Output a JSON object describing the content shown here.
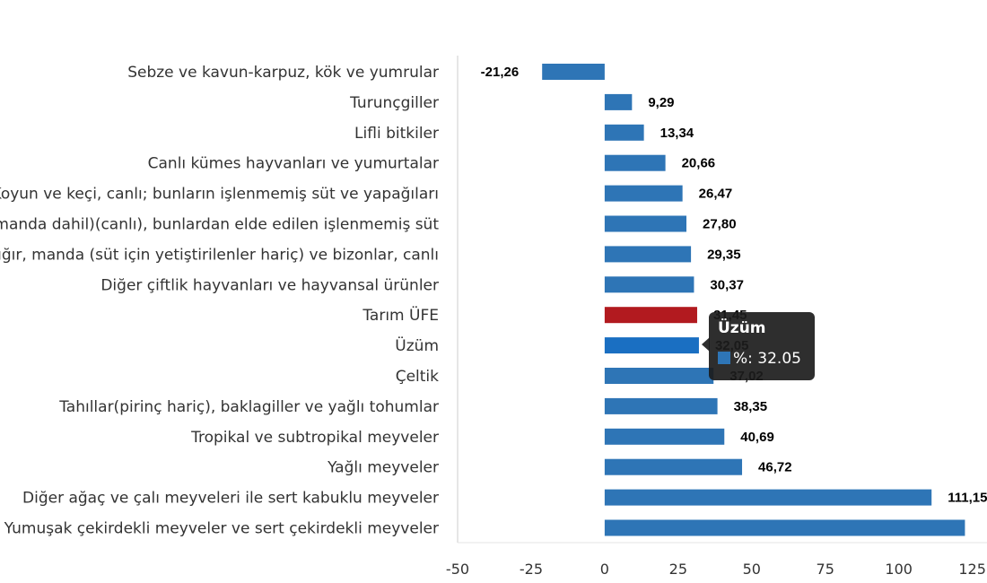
{
  "chart_data": {
    "type": "bar",
    "orientation": "horizontal",
    "categories": [
      "Sebze ve kavun-karpuz, kök ve yumrular",
      "Turunçgiller",
      "Lifli bitkiler",
      "Canlı kümes hayvanları ve yumurtalar",
      "Koyun ve keçi, canlı; bunların işlenmemiş süt ve yapağıları",
      "Sığırlar(manda dahil)(canlı), bunlardan elde edilen işlenmemiş süt",
      "Diğer sığır, manda (süt için yetiştirilenler hariç) ve bizonlar, canlı",
      "Diğer çiftlik hayvanları ve hayvansal ürünler",
      "Tarım ÜFE",
      "Üzüm",
      "Çeltik",
      "Tahıllar(pirinç hariç), baklagiller ve yağlı tohumlar",
      "Tropikal ve subtropikal meyveler",
      "Yağlı meyveler",
      "Diğer ağaç ve çalı meyveleri ile sert kabuklu meyveler",
      "Yumuşak çekirdekli meyveler ve sert çekirdekli meyveler"
    ],
    "values": [
      -21.26,
      9.29,
      13.34,
      20.66,
      26.47,
      27.8,
      29.35,
      30.37,
      31.45,
      32.05,
      37.02,
      38.35,
      40.69,
      46.72,
      111.15,
      122.5
    ],
    "value_labels": [
      "-21,26",
      "9,29",
      "13,34",
      "20,66",
      "26,47",
      "27,80",
      "29,35",
      "30,37",
      "31,45",
      "32,05",
      "37,02",
      "38,35",
      "40,69",
      "46,72",
      "111,15",
      ""
    ],
    "xlim": [
      -50,
      130
    ],
    "x_ticks": [
      -50,
      -25,
      0,
      25,
      50,
      75,
      100,
      125
    ],
    "colors": {
      "default": "#2e75b6",
      "highlight_total": "#b21a1f",
      "highlight_hover": "#1a6fc2"
    },
    "highlight_total_index": 8,
    "hover_index": 9,
    "title": "",
    "xlabel": "",
    "ylabel": ""
  },
  "tooltip": {
    "title": "Üzüm",
    "text": "%: 32.05",
    "swatch_color": "#2e75b6"
  }
}
